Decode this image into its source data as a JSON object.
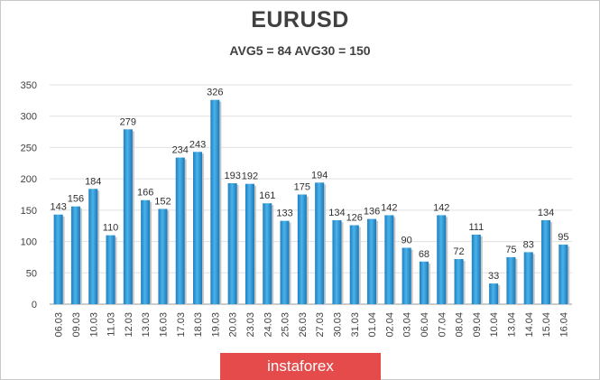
{
  "chart_data": {
    "type": "bar",
    "title": "EURUSD",
    "subtitle": "AVG5 = 84 AVG30 = 150",
    "categories": [
      "06.03",
      "09.03",
      "10.03",
      "11.03",
      "12.03",
      "13.03",
      "16.03",
      "17.03",
      "18.03",
      "19.03",
      "20.03",
      "23.03",
      "24.03",
      "25.03",
      "26.03",
      "27.03",
      "30.03",
      "31.03",
      "01.04",
      "02.04",
      "03.04",
      "06.04",
      "07.04",
      "08.04",
      "09.04",
      "10.04",
      "13.04",
      "14.04",
      "15.04",
      "16.04"
    ],
    "values": [
      143,
      156,
      184,
      110,
      279,
      166,
      152,
      234,
      243,
      326,
      193,
      192,
      161,
      133,
      175,
      194,
      134,
      126,
      136,
      142,
      90,
      68,
      142,
      72,
      111,
      33,
      75,
      83,
      134,
      95
    ],
    "ylim": [
      0,
      350
    ],
    "yticks": [
      0,
      50,
      100,
      150,
      200,
      250,
      300,
      350
    ],
    "grid": true,
    "bar_color": "#2b9ad6",
    "xlabel": "",
    "ylabel": ""
  },
  "watermark": "instaforex"
}
